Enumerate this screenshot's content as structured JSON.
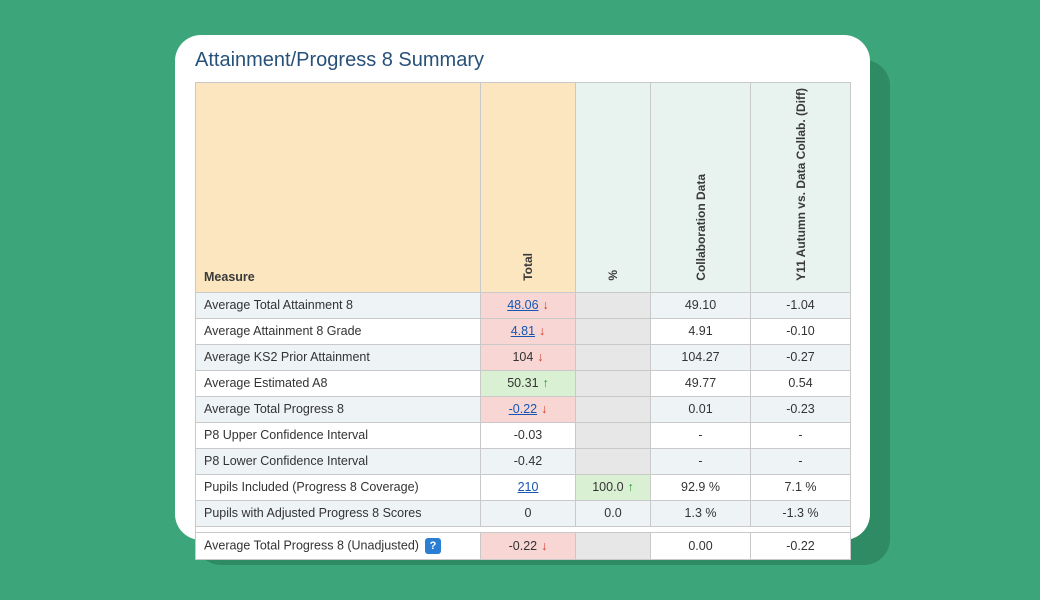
{
  "title": "Attainment/Progress 8 Summary",
  "columns": {
    "measure": "Measure",
    "total": "Total",
    "pct": "%",
    "collab": "Collaboration Data",
    "diff": "Y11 Autumn\nvs. Data Collab. (Diff)"
  },
  "col_widths": {
    "measure": 285,
    "total": 95,
    "pct": 75,
    "collab": 100,
    "diff": 100
  },
  "header_bg": {
    "measure": "#fbe6bf",
    "total": "#fbe6bf",
    "pct": "#e8f2ef",
    "collab": "#e8f2ef",
    "diff": "#e8f2ef"
  },
  "zebra_bg": "#eef3f6",
  "cell_colors": {
    "red": "#f7d6d4",
    "green": "#d9f0d2",
    "grey": "#e7e7e7"
  },
  "link_color": "#1556b3",
  "arrow_down_color": "#d23a2a",
  "arrow_up_color": "#2e9c3d",
  "rows": [
    {
      "zebra": true,
      "measure": "Average Total Attainment 8",
      "total": {
        "value": "48.06",
        "link": true,
        "arrow": "down",
        "bg": "red"
      },
      "pct": {
        "value": "",
        "bg": "grey"
      },
      "collab": "49.10",
      "diff": "-1.04"
    },
    {
      "zebra": false,
      "measure": "Average Attainment 8 Grade",
      "total": {
        "value": "4.81",
        "link": true,
        "arrow": "down",
        "bg": "red"
      },
      "pct": {
        "value": "",
        "bg": "grey"
      },
      "collab": "4.91",
      "diff": "-0.10"
    },
    {
      "zebra": true,
      "measure": "Average KS2 Prior Attainment",
      "total": {
        "value": "104",
        "link": false,
        "arrow": "down",
        "bg": "red"
      },
      "pct": {
        "value": "",
        "bg": "grey"
      },
      "collab": "104.27",
      "diff": "-0.27"
    },
    {
      "zebra": false,
      "measure": "Average Estimated A8",
      "total": {
        "value": "50.31",
        "link": false,
        "arrow": "up",
        "bg": "green"
      },
      "pct": {
        "value": "",
        "bg": "grey"
      },
      "collab": "49.77",
      "diff": "0.54"
    },
    {
      "zebra": true,
      "measure": "Average Total Progress 8",
      "total": {
        "value": "-0.22",
        "link": true,
        "arrow": "down",
        "bg": "red"
      },
      "pct": {
        "value": "",
        "bg": "grey"
      },
      "collab": "0.01",
      "diff": "-0.23"
    },
    {
      "zebra": false,
      "measure": "P8 Upper Confidence Interval",
      "total": {
        "value": "-0.03",
        "link": false,
        "arrow": "",
        "bg": ""
      },
      "pct": {
        "value": "",
        "bg": "grey"
      },
      "collab": "-",
      "diff": "-"
    },
    {
      "zebra": true,
      "measure": "P8 Lower Confidence Interval",
      "total": {
        "value": "-0.42",
        "link": false,
        "arrow": "",
        "bg": ""
      },
      "pct": {
        "value": "",
        "bg": "grey"
      },
      "collab": "-",
      "diff": "-"
    },
    {
      "zebra": false,
      "measure": "Pupils Included (Progress 8 Coverage)",
      "total": {
        "value": "210",
        "link": true,
        "arrow": "",
        "bg": ""
      },
      "pct": {
        "value": "100.0",
        "arrow": "up",
        "bg": "green"
      },
      "collab": "92.9 %",
      "diff": "7.1 %"
    },
    {
      "zebra": true,
      "measure": "Pupils with Adjusted Progress 8 Scores",
      "total": {
        "value": "0",
        "link": false,
        "arrow": "",
        "bg": ""
      },
      "pct": {
        "value": "0.0",
        "arrow": "",
        "bg": ""
      },
      "collab": "1.3 %",
      "diff": "-1.3 %"
    },
    {
      "spacer": true
    },
    {
      "zebra": false,
      "measure": "Average Total Progress 8 (Unadjusted)",
      "help": true,
      "total": {
        "value": "-0.22",
        "link": false,
        "arrow": "down",
        "bg": "red"
      },
      "pct": {
        "value": "",
        "bg": "grey"
      },
      "collab": "0.00",
      "diff": "-0.22"
    }
  ],
  "help_label": "?"
}
